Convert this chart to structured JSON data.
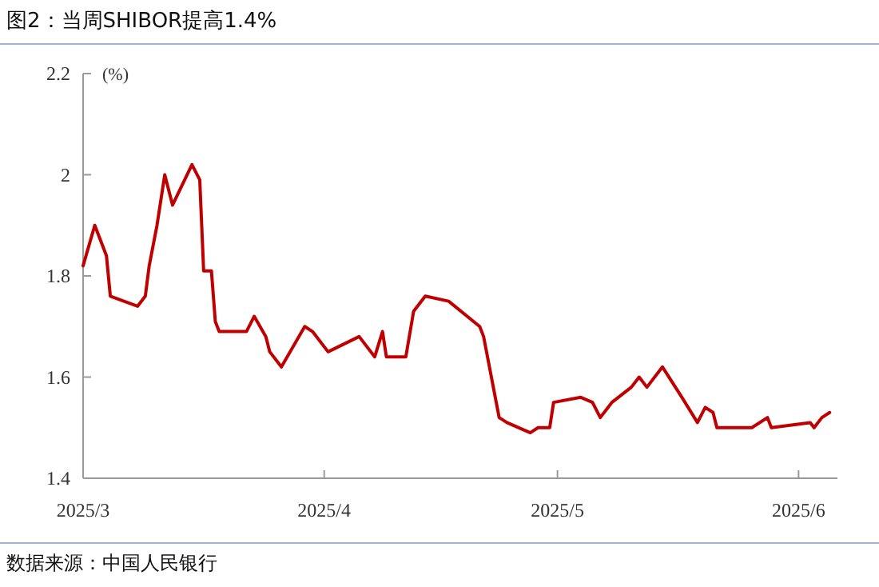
{
  "chart_data": {
    "type": "line",
    "title": "图2：当周SHIBOR提高1.4%",
    "ylabel": "(%)",
    "annotations": [
      "数据来源：中国人民银行"
    ],
    "x": [
      "2025-03-01",
      "2025-03-02T12:00",
      "2025-03-04",
      "2025-03-04T12:00",
      "2025-03-08",
      "2025-03-09",
      "2025-03-09T12:00",
      "2025-03-10T12:00",
      "2025-03-11T12:00",
      "2025-03-12T12:00",
      "2025-03-15",
      "2025-03-16",
      "2025-03-16T12:00",
      "2025-03-17T12:00",
      "2025-03-18",
      "2025-03-18T12:00",
      "2025-03-22",
      "2025-03-23",
      "2025-03-24T12:00",
      "2025-03-25",
      "2025-03-26T12:00",
      "2025-03-29T12:00",
      "2025-03-30T12:00",
      "2025-04-01T12:00",
      "2025-04-05T12:00",
      "2025-04-07T12:00",
      "2025-04-08T12:00",
      "2025-04-09",
      "2025-04-11T12:00",
      "2025-04-12T12:00",
      "2025-04-14",
      "2025-04-17",
      "2025-04-21",
      "2025-04-21T12:00",
      "2025-04-23T12:00",
      "2025-04-24T12:00",
      "2025-04-27T12:00",
      "2025-04-28T12:00",
      "2025-04-30",
      "2025-04-30T12:00",
      "2025-05-04",
      "2025-05-05T12:00",
      "2025-05-06T12:00",
      "2025-05-08",
      "2025-05-10T12:00",
      "2025-05-11T12:00",
      "2025-05-12T12:00",
      "2025-05-14T12:00",
      "2025-05-17",
      "2025-05-19",
      "2025-05-20",
      "2025-05-21",
      "2025-05-21T12:00",
      "2025-05-26",
      "2025-05-28",
      "2025-05-28T12:00",
      "2025-06-02T12:00",
      "2025-06-03",
      "2025-06-04",
      "2025-06-05"
    ],
    "series": [
      {
        "color": "#c00000",
        "values": [
          1.82,
          1.9,
          1.84,
          1.76,
          1.74,
          1.76,
          1.82,
          1.9,
          2.0,
          1.94,
          2.02,
          1.99,
          1.81,
          1.81,
          1.71,
          1.69,
          1.69,
          1.72,
          1.68,
          1.65,
          1.62,
          1.7,
          1.69,
          1.65,
          1.68,
          1.64,
          1.69,
          1.64,
          1.64,
          1.73,
          1.76,
          1.75,
          1.7,
          1.68,
          1.52,
          1.51,
          1.49,
          1.5,
          1.5,
          1.55,
          1.56,
          1.55,
          1.52,
          1.55,
          1.58,
          1.6,
          1.58,
          1.62,
          1.56,
          1.51,
          1.54,
          1.53,
          1.5,
          1.5,
          1.52,
          1.5,
          1.51,
          1.5,
          1.52,
          1.53
        ]
      }
    ],
    "xlim": [
      "2025-03-01",
      "2025-06-06"
    ],
    "xticks": [
      {
        "value": "2025-03-01",
        "label": "2025/3"
      },
      {
        "value": "2025-04-01",
        "label": "2025/4"
      },
      {
        "value": "2025-05-01",
        "label": "2025/5"
      },
      {
        "value": "2025-06-01",
        "label": "2025/6"
      }
    ],
    "ylim": [
      1.4,
      2.2
    ],
    "yticks": [
      1.4,
      1.6,
      1.8,
      2,
      2.2
    ]
  }
}
